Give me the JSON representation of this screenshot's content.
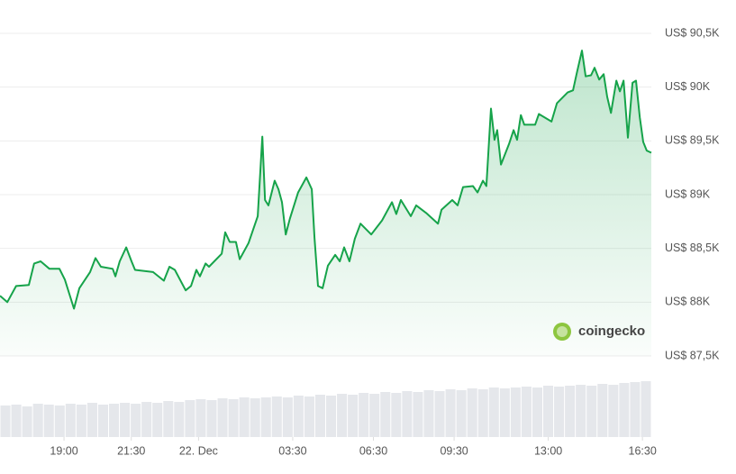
{
  "chart_data": {
    "type": "area",
    "x": [
      16.62,
      16.89,
      17.22,
      17.69,
      17.89,
      18.13,
      18.46,
      18.83,
      19.03,
      19.37,
      19.57,
      19.97,
      20.17,
      20.37,
      20.81,
      20.91,
      21.07,
      21.31,
      21.51,
      21.64,
      22.31,
      22.71,
      22.92,
      23.12,
      23.52,
      23.72,
      23.92,
      24.05,
      24.26,
      24.39,
      24.86,
      24.99,
      25.16,
      25.39,
      25.53,
      25.86,
      26.2,
      26.37,
      26.47,
      26.6,
      26.83,
      26.97,
      27.1,
      27.24,
      27.4,
      27.7,
      28.01,
      28.21,
      28.31,
      28.44,
      28.61,
      28.81,
      29.08,
      29.25,
      29.41,
      29.61,
      29.81,
      30.02,
      30.42,
      30.82,
      31.19,
      31.35,
      31.52,
      31.89,
      32.09,
      32.46,
      32.9,
      33.03,
      33.43,
      33.63,
      33.83,
      34.2,
      34.37,
      34.57,
      34.7,
      34.87,
      35.0,
      35.1,
      35.24,
      35.54,
      35.71,
      35.84,
      35.98,
      36.11,
      36.51,
      36.65,
      37.12,
      37.32,
      37.72,
      37.92,
      38.05,
      38.25,
      38.39,
      38.59,
      38.72,
      38.89,
      39.06,
      39.19,
      39.33,
      39.53,
      39.66,
      39.8,
      39.96,
      40.13,
      40.26,
      40.4,
      40.53,
      40.66,
      40.83
    ],
    "values": [
      88060,
      88000,
      88150,
      88160,
      88360,
      88380,
      88310,
      88310,
      88210,
      87940,
      88130,
      88280,
      88410,
      88330,
      88310,
      88240,
      88380,
      88510,
      88380,
      88300,
      88280,
      88200,
      88330,
      88300,
      88110,
      88150,
      88300,
      88240,
      88360,
      88330,
      88450,
      88650,
      88560,
      88560,
      88400,
      88550,
      88800,
      89540,
      88950,
      88900,
      89130,
      89050,
      88930,
      88630,
      88780,
      89020,
      89160,
      89050,
      88600,
      88150,
      88130,
      88340,
      88440,
      88380,
      88510,
      88380,
      88590,
      88730,
      88630,
      88760,
      88930,
      88820,
      88950,
      88800,
      88900,
      88830,
      88730,
      88860,
      88950,
      88900,
      89070,
      89080,
      89020,
      89130,
      89080,
      89800,
      89510,
      89600,
      89280,
      89470,
      89600,
      89510,
      89740,
      89650,
      89650,
      89750,
      89680,
      89850,
      89950,
      89970,
      90120,
      90340,
      90100,
      90110,
      90180,
      90070,
      90120,
      89910,
      89760,
      90060,
      89960,
      90060,
      89530,
      90040,
      90060,
      89720,
      89490,
      89410,
      89390
    ],
    "color": "#16a34a",
    "xlim": [
      16.62,
      40.83
    ],
    "xticks": [
      {
        "value": 19,
        "label": "19:00"
      },
      {
        "value": 21.5,
        "label": "21:30"
      },
      {
        "value": 24,
        "label": "22. Dec"
      },
      {
        "value": 27.5,
        "label": "03:30"
      },
      {
        "value": 30.5,
        "label": "06:30"
      },
      {
        "value": 33.5,
        "label": "09:30"
      },
      {
        "value": 37,
        "label": "13:00"
      },
      {
        "value": 40.5,
        "label": "16:30"
      }
    ],
    "ylim": [
      87500,
      90500
    ],
    "yticks": [
      {
        "value": 87500,
        "label": "US$ 87,5K"
      },
      {
        "value": 88000,
        "label": "US$ 88K"
      },
      {
        "value": 88500,
        "label": "US$ 88,5K"
      },
      {
        "value": 89000,
        "label": "US$ 89K"
      },
      {
        "value": 89500,
        "label": "US$ 89,5K"
      },
      {
        "value": 90000,
        "label": "US$ 90K"
      },
      {
        "value": 90500,
        "label": "US$ 90,5K"
      }
    ],
    "grid": true,
    "watermark": "coingecko",
    "volume": {
      "color": "#e5e7eb",
      "ylim": [
        0,
        100
      ],
      "values": [
        35,
        36,
        34,
        37,
        36,
        35,
        37,
        36,
        38,
        36,
        37,
        38,
        37,
        39,
        38,
        40,
        39,
        41,
        42,
        41,
        43,
        42,
        44,
        43,
        44,
        45,
        44,
        46,
        45,
        47,
        46,
        48,
        47,
        49,
        48,
        50,
        49,
        51,
        50,
        52,
        51,
        53,
        52,
        54,
        53,
        55,
        54,
        55,
        56,
        55,
        57,
        56,
        57,
        58,
        57,
        59,
        58,
        60,
        61,
        62
      ]
    }
  }
}
